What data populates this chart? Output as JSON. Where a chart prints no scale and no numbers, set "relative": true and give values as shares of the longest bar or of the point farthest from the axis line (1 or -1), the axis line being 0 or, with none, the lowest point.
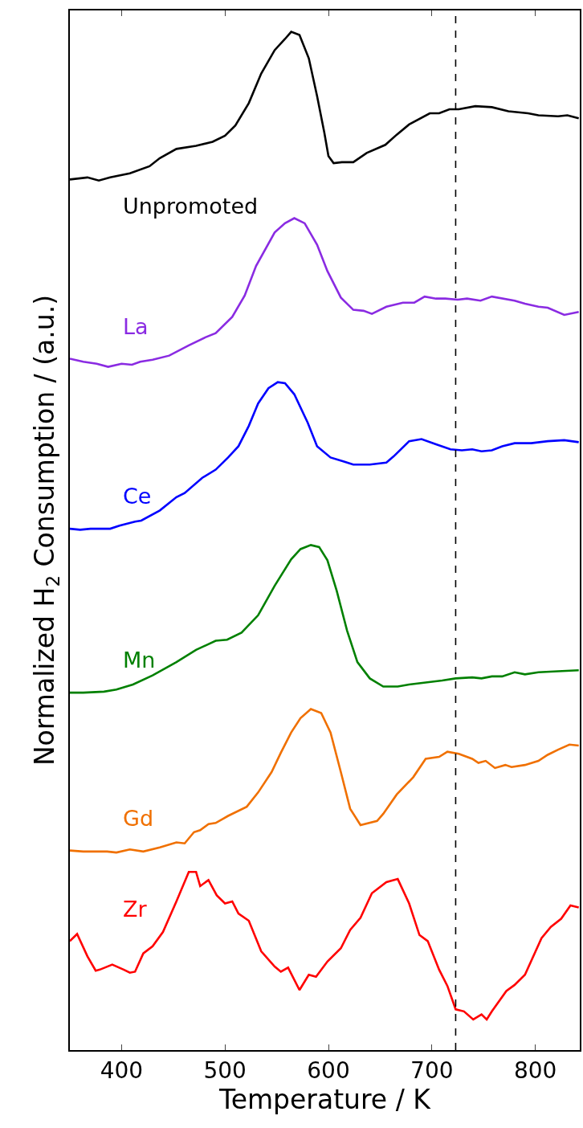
{
  "chart_data": {
    "type": "line",
    "relative": true,
    "xlabel": "Temperature / K",
    "ylabel": "Normalized H$_{2}$ Consumption / (a.u.)",
    "xlim": [
      350,
      843
    ],
    "xticks": [
      400,
      500,
      600,
      700,
      800
    ],
    "legend": false,
    "marker": "none",
    "line_style": "solid",
    "ref_lines": [
      {
        "axis": "x",
        "value": 723,
        "label": null,
        "color": "#000000",
        "line_style": "dashed"
      }
    ],
    "series": [
      {
        "name": "Unpromoted",
        "color": "#000000",
        "x": [
          350,
          367,
          378,
          389,
          408,
          427,
          437,
          453,
          472,
          488,
          500,
          510,
          523,
          535,
          548,
          558,
          564,
          572,
          581,
          589,
          596,
          600,
          605,
          613,
          624,
          637,
          655,
          666,
          678,
          698,
          707,
          717,
          726,
          742,
          758,
          774,
          793,
          803,
          822,
          831,
          842
        ],
        "values": [
          0.855,
          0.857,
          0.854,
          0.857,
          0.861,
          0.868,
          0.876,
          0.885,
          0.888,
          0.892,
          0.898,
          0.908,
          0.93,
          0.959,
          0.982,
          0.993,
          1.0,
          0.997,
          0.974,
          0.937,
          0.901,
          0.878,
          0.871,
          0.872,
          0.872,
          0.881,
          0.889,
          0.899,
          0.909,
          0.92,
          0.92,
          0.924,
          0.924,
          0.927,
          0.926,
          0.922,
          0.92,
          0.918,
          0.917,
          0.918,
          0.915
        ]
      },
      {
        "name": "La",
        "color": "#8a2be2",
        "x": [
          350,
          363,
          376,
          387,
          400,
          410,
          418,
          430,
          446,
          465,
          481,
          491,
          507,
          519,
          530,
          548,
          558,
          567,
          577,
          589,
          599,
          612,
          624,
          634,
          642,
          656,
          672,
          683,
          693,
          704,
          713,
          725,
          734,
          747,
          758,
          780,
          790,
          803,
          812,
          828,
          842
        ],
        "values": [
          0.679,
          0.676,
          0.674,
          0.671,
          0.674,
          0.673,
          0.676,
          0.678,
          0.682,
          0.692,
          0.7,
          0.704,
          0.72,
          0.741,
          0.77,
          0.803,
          0.812,
          0.817,
          0.812,
          0.791,
          0.765,
          0.739,
          0.727,
          0.726,
          0.723,
          0.73,
          0.734,
          0.734,
          0.74,
          0.738,
          0.738,
          0.737,
          0.738,
          0.736,
          0.74,
          0.736,
          0.733,
          0.73,
          0.729,
          0.722,
          0.725
        ]
      },
      {
        "name": "Ce",
        "color": "#0000ff",
        "x": [
          350,
          360,
          370,
          389,
          398,
          413,
          419,
          437,
          453,
          461,
          478,
          491,
          503,
          513,
          523,
          532,
          542,
          551,
          558,
          567,
          580,
          589,
          602,
          615,
          624,
          640,
          656,
          663,
          678,
          690,
          704,
          718,
          729,
          739,
          748,
          758,
          768,
          780,
          796,
          812,
          828,
          842
        ],
        "values": [
          0.512,
          0.511,
          0.512,
          0.512,
          0.515,
          0.519,
          0.52,
          0.53,
          0.543,
          0.547,
          0.562,
          0.57,
          0.582,
          0.593,
          0.613,
          0.635,
          0.65,
          0.656,
          0.655,
          0.644,
          0.616,
          0.593,
          0.582,
          0.578,
          0.575,
          0.575,
          0.577,
          0.583,
          0.598,
          0.6,
          0.595,
          0.59,
          0.589,
          0.59,
          0.588,
          0.589,
          0.593,
          0.596,
          0.596,
          0.598,
          0.599,
          0.597
        ]
      },
      {
        "name": "Mn",
        "color": "#008000",
        "x": [
          350,
          363,
          383,
          395,
          411,
          430,
          453,
          472,
          491,
          502,
          516,
          532,
          548,
          564,
          573,
          583,
          591,
          599,
          608,
          618,
          628,
          640,
          653,
          667,
          678,
          694,
          710,
          723,
          739,
          748,
          758,
          768,
          780,
          790,
          803,
          822,
          842
        ],
        "values": [
          0.351,
          0.351,
          0.352,
          0.354,
          0.359,
          0.368,
          0.381,
          0.393,
          0.402,
          0.403,
          0.41,
          0.427,
          0.456,
          0.482,
          0.492,
          0.496,
          0.494,
          0.481,
          0.451,
          0.412,
          0.381,
          0.365,
          0.357,
          0.357,
          0.359,
          0.361,
          0.363,
          0.365,
          0.366,
          0.365,
          0.367,
          0.367,
          0.371,
          0.369,
          0.371,
          0.372,
          0.373
        ]
      },
      {
        "name": "Gd",
        "color": "#f07000",
        "x": [
          350,
          363,
          386,
          395,
          408,
          421,
          437,
          453,
          461,
          470,
          476,
          484,
          491,
          503,
          521,
          532,
          545,
          554,
          564,
          573,
          583,
          593,
          602,
          612,
          621,
          631,
          647,
          653,
          666,
          682,
          694,
          707,
          715,
          726,
          739,
          745,
          752,
          761,
          771,
          777,
          790,
          803,
          812,
          822,
          833,
          842
        ],
        "values": [
          0.196,
          0.195,
          0.195,
          0.194,
          0.197,
          0.195,
          0.199,
          0.204,
          0.203,
          0.214,
          0.216,
          0.222,
          0.223,
          0.23,
          0.239,
          0.253,
          0.273,
          0.292,
          0.312,
          0.326,
          0.335,
          0.331,
          0.312,
          0.273,
          0.237,
          0.221,
          0.225,
          0.232,
          0.251,
          0.268,
          0.286,
          0.288,
          0.293,
          0.291,
          0.286,
          0.282,
          0.284,
          0.277,
          0.28,
          0.278,
          0.28,
          0.284,
          0.29,
          0.295,
          0.3,
          0.299
        ]
      },
      {
        "name": "Zr",
        "color": "#ff0000",
        "x": [
          350,
          357,
          367,
          375,
          379,
          391,
          402,
          408,
          413,
          421,
          430,
          440,
          453,
          465,
          472,
          476,
          484,
          492,
          500,
          507,
          513,
          523,
          535,
          548,
          554,
          561,
          572,
          581,
          588,
          599,
          612,
          621,
          631,
          642,
          656,
          667,
          678,
          688,
          696,
          707,
          715,
          723,
          731,
          740,
          748,
          753,
          758,
          772,
          780,
          790,
          806,
          815,
          825,
          834,
          842
        ],
        "values": [
          0.107,
          0.114,
          0.092,
          0.078,
          0.079,
          0.084,
          0.079,
          0.076,
          0.077,
          0.095,
          0.102,
          0.116,
          0.146,
          0.175,
          0.175,
          0.161,
          0.167,
          0.152,
          0.144,
          0.146,
          0.134,
          0.127,
          0.097,
          0.082,
          0.077,
          0.081,
          0.059,
          0.074,
          0.072,
          0.087,
          0.1,
          0.118,
          0.13,
          0.154,
          0.165,
          0.168,
          0.144,
          0.113,
          0.107,
          0.079,
          0.063,
          0.04,
          0.038,
          0.03,
          0.035,
          0.03,
          0.038,
          0.058,
          0.064,
          0.074,
          0.11,
          0.121,
          0.129,
          0.142,
          0.14
        ]
      }
    ]
  }
}
